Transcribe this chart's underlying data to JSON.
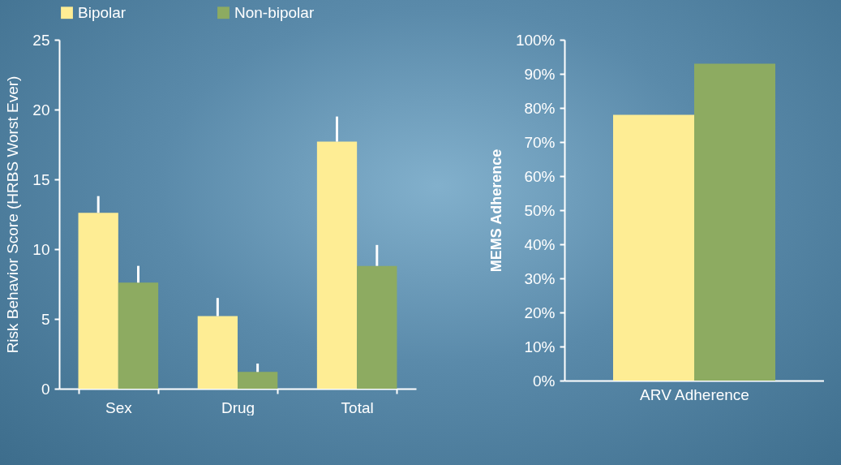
{
  "chart_data": [
    {
      "type": "bar",
      "categories": [
        "Sex",
        "Drug",
        "Total"
      ],
      "ylabel": "Risk Behavior Score (HRBS Worst Ever)",
      "ylim": [
        0,
        25
      ],
      "yticks": [
        0,
        5,
        10,
        15,
        20,
        25
      ],
      "legend": "top",
      "series": [
        {
          "name": "Bipolar",
          "color": "#feed94",
          "values": [
            12.6,
            5.2,
            17.7
          ],
          "errors": [
            [
              12.6,
              13.8
            ],
            [
              5.2,
              6.5
            ],
            [
              17.7,
              19.5
            ]
          ]
        },
        {
          "name": "Non-bipolar",
          "color": "#8dab61",
          "values": [
            7.6,
            1.2,
            8.8
          ],
          "errors": [
            [
              7.6,
              8.8
            ],
            [
              1.2,
              1.8
            ],
            [
              8.8,
              10.3
            ]
          ]
        }
      ]
    },
    {
      "type": "bar",
      "categories": [
        "ARV Adherence"
      ],
      "ylabel": "MEMS Adherence",
      "ylim": [
        0,
        100
      ],
      "yticks": [
        {
          "value": 0,
          "label": "0%"
        },
        {
          "value": 10,
          "label": "10%"
        },
        {
          "value": 20,
          "label": "20%"
        },
        {
          "value": 30,
          "label": "30%"
        },
        {
          "value": 40,
          "label": "40%"
        },
        {
          "value": 50,
          "label": "50%"
        },
        {
          "value": 60,
          "label": "60%"
        },
        {
          "value": 70,
          "label": "70%"
        },
        {
          "value": 80,
          "label": "80%"
        },
        {
          "value": 90,
          "label": "90%"
        },
        {
          "value": 100,
          "label": "100%"
        }
      ],
      "series": [
        {
          "name": "Bipolar",
          "color": "#feed94",
          "values": [
            78
          ]
        },
        {
          "name": "Non-bipolar",
          "color": "#8dab61",
          "values": [
            93
          ]
        }
      ]
    }
  ]
}
